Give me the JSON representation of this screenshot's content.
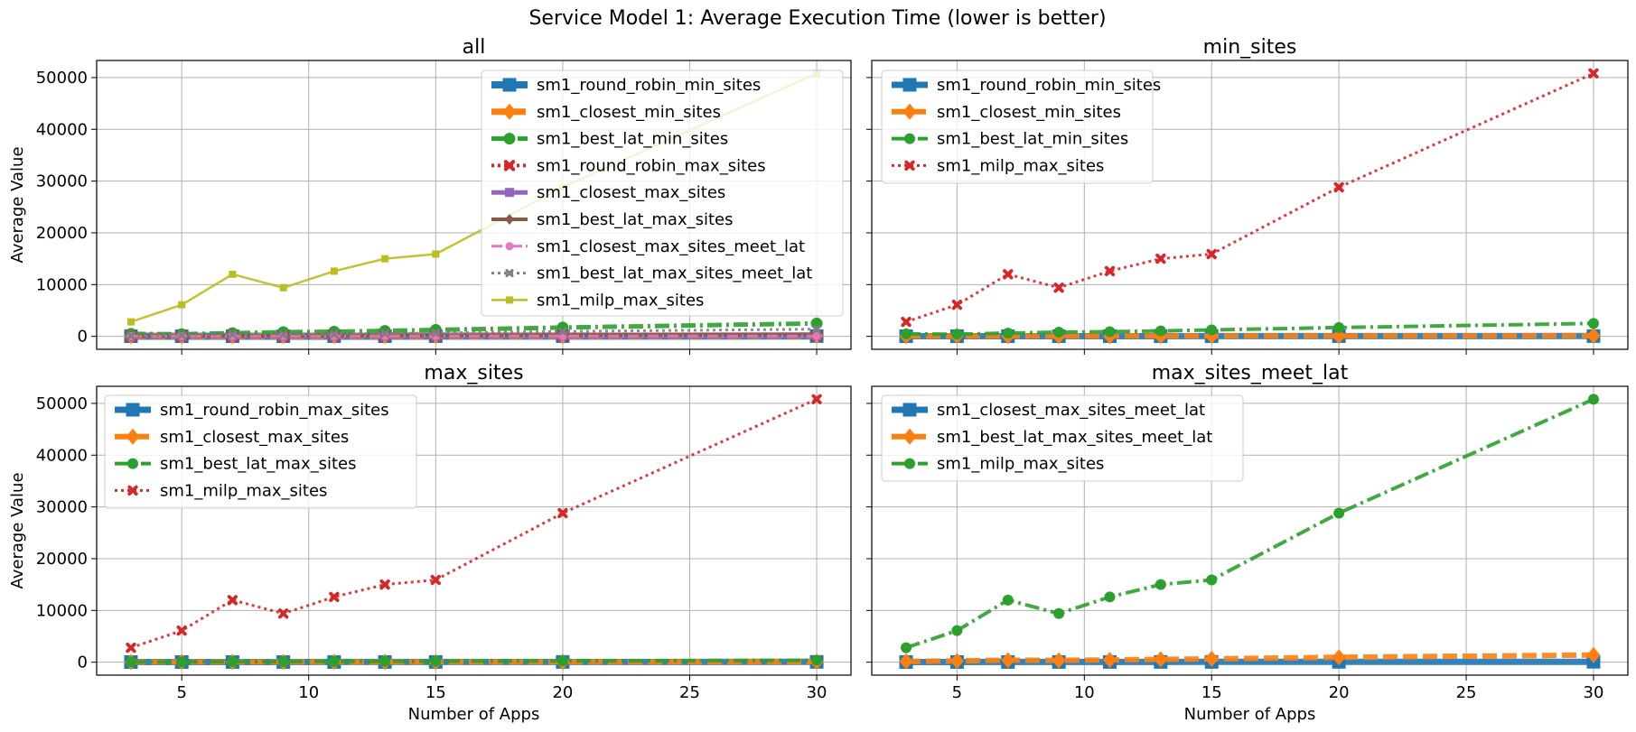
{
  "figure": {
    "title": "Service Model 1: Average Execution Time (lower is better)"
  },
  "chart_data": [
    {
      "type": "line",
      "title": "all",
      "xlabel": "",
      "ylabel": "Average Value",
      "x": [
        3,
        5,
        7,
        9,
        11,
        13,
        15,
        20,
        30
      ],
      "xlim": [
        1.65,
        31.35
      ],
      "ylim": [
        -2500,
        53300
      ],
      "xticks": [
        5,
        10,
        15,
        20,
        25,
        30
      ],
      "yticks": [
        0,
        10000,
        20000,
        30000,
        40000,
        50000
      ],
      "grid": true,
      "legend_position": "upper-right",
      "series": [
        {
          "name": "sm1_round_robin_min_sites",
          "color": "#1f77b4",
          "values": [
            30,
            30,
            35,
            30,
            35,
            35,
            40,
            45,
            55
          ]
        },
        {
          "name": "sm1_closest_min_sites",
          "color": "#ff7f0e",
          "values": [
            40,
            45,
            50,
            50,
            55,
            60,
            65,
            80,
            120
          ]
        },
        {
          "name": "sm1_best_lat_min_sites",
          "color": "#2ca02c",
          "values": [
            480,
            420,
            620,
            810,
            900,
            1050,
            1250,
            1700,
            2500
          ]
        },
        {
          "name": "sm1_round_robin_max_sites",
          "color": "#d62728",
          "values": [
            30,
            30,
            35,
            35,
            40,
            40,
            45,
            50,
            60
          ]
        },
        {
          "name": "sm1_closest_max_sites",
          "color": "#9467bd",
          "values": [
            35,
            40,
            45,
            45,
            50,
            55,
            60,
            70,
            90
          ]
        },
        {
          "name": "sm1_best_lat_max_sites",
          "color": "#8c564b",
          "values": [
            40,
            60,
            110,
            110,
            150,
            170,
            200,
            260,
            380
          ]
        },
        {
          "name": "sm1_closest_max_sites_meet_lat",
          "color": "#e377c2",
          "values": [
            30,
            35,
            40,
            40,
            45,
            50,
            55,
            60,
            80
          ]
        },
        {
          "name": "sm1_best_lat_max_sites_meet_lat",
          "color": "#7f7f7f",
          "values": [
            150,
            250,
            380,
            360,
            450,
            560,
            640,
            950,
            1380
          ]
        },
        {
          "name": "sm1_milp_max_sites",
          "color": "#bcbd22",
          "values": [
            2800,
            6100,
            12000,
            9400,
            12600,
            15000,
            15900,
            28800,
            50800
          ]
        }
      ]
    },
    {
      "type": "line",
      "title": "min_sites",
      "xlabel": "",
      "ylabel": "",
      "x": [
        3,
        5,
        7,
        9,
        11,
        13,
        15,
        20,
        30
      ],
      "xlim": [
        1.65,
        31.35
      ],
      "ylim": [
        -2500,
        53300
      ],
      "xticks": [
        5,
        10,
        15,
        20,
        25,
        30
      ],
      "yticks": [
        0,
        10000,
        20000,
        30000,
        40000,
        50000
      ],
      "grid": true,
      "legend_position": "upper-left",
      "series": [
        {
          "name": "sm1_round_robin_min_sites",
          "color": "#1f77b4",
          "values": [
            30,
            30,
            35,
            30,
            35,
            35,
            40,
            45,
            55
          ]
        },
        {
          "name": "sm1_closest_min_sites",
          "color": "#ff7f0e",
          "values": [
            40,
            45,
            50,
            50,
            55,
            60,
            65,
            80,
            120
          ]
        },
        {
          "name": "sm1_best_lat_min_sites",
          "color": "#2ca02c",
          "values": [
            480,
            420,
            620,
            810,
            900,
            1050,
            1250,
            1700,
            2500
          ]
        },
        {
          "name": "sm1_milp_max_sites",
          "color": "#d62728",
          "values": [
            2800,
            6100,
            12000,
            9400,
            12600,
            15000,
            15900,
            28800,
            50800
          ]
        }
      ]
    },
    {
      "type": "line",
      "title": "max_sites",
      "xlabel": "Number of Apps",
      "ylabel": "Average Value",
      "x": [
        3,
        5,
        7,
        9,
        11,
        13,
        15,
        20,
        30
      ],
      "xlim": [
        1.65,
        31.35
      ],
      "ylim": [
        -2500,
        53300
      ],
      "xticks": [
        5,
        10,
        15,
        20,
        25,
        30
      ],
      "yticks": [
        0,
        10000,
        20000,
        30000,
        40000,
        50000
      ],
      "grid": true,
      "legend_position": "upper-left",
      "series": [
        {
          "name": "sm1_round_robin_max_sites",
          "color": "#1f77b4",
          "values": [
            30,
            30,
            35,
            35,
            40,
            40,
            45,
            50,
            60
          ]
        },
        {
          "name": "sm1_closest_max_sites",
          "color": "#ff7f0e",
          "values": [
            35,
            40,
            45,
            45,
            50,
            55,
            60,
            70,
            90
          ]
        },
        {
          "name": "sm1_best_lat_max_sites",
          "color": "#2ca02c",
          "values": [
            40,
            60,
            110,
            110,
            150,
            170,
            200,
            260,
            380
          ]
        },
        {
          "name": "sm1_milp_max_sites",
          "color": "#d62728",
          "values": [
            2800,
            6100,
            12000,
            9400,
            12600,
            15000,
            15900,
            28800,
            50800
          ]
        }
      ]
    },
    {
      "type": "line",
      "title": "max_sites_meet_lat",
      "xlabel": "Number of Apps",
      "ylabel": "",
      "x": [
        3,
        5,
        7,
        9,
        11,
        13,
        15,
        20,
        30
      ],
      "xlim": [
        1.65,
        31.35
      ],
      "ylim": [
        -2500,
        53300
      ],
      "xticks": [
        5,
        10,
        15,
        20,
        25,
        30
      ],
      "yticks": [
        0,
        10000,
        20000,
        30000,
        40000,
        50000
      ],
      "grid": true,
      "legend_position": "upper-left",
      "series": [
        {
          "name": "sm1_closest_max_sites_meet_lat",
          "color": "#1f77b4",
          "values": [
            30,
            35,
            40,
            40,
            45,
            50,
            55,
            60,
            80
          ]
        },
        {
          "name": "sm1_best_lat_max_sites_meet_lat",
          "color": "#ff7f0e",
          "values": [
            150,
            250,
            380,
            360,
            450,
            560,
            640,
            950,
            1380
          ]
        },
        {
          "name": "sm1_milp_max_sites",
          "color": "#2ca02c",
          "values": [
            2800,
            6100,
            12000,
            9400,
            12600,
            15000,
            15900,
            28800,
            50800
          ]
        }
      ]
    }
  ]
}
